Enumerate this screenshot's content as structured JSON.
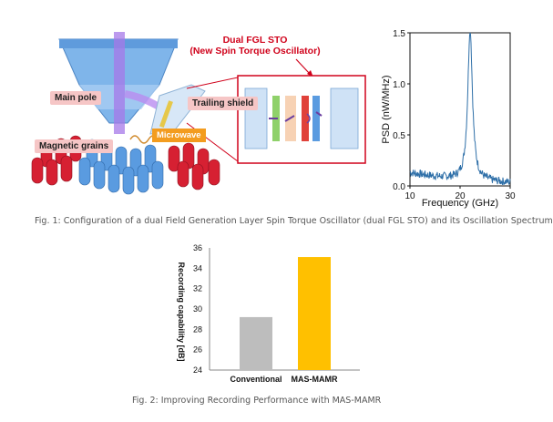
{
  "figure1": {
    "title_line1": "Dual FGL STO",
    "title_line2": "(New Spin Torque Oscillator)",
    "labels": {
      "main_pole": "Main pole",
      "trailing_shield": "Trailing shield",
      "microwave": "Microwave",
      "magnetic_grains": "Magnetic grains"
    },
    "colors": {
      "title": "#d0021b",
      "label_bg": "#f6c6c6",
      "microwave_bg": "#f39c1f",
      "grain_red": "#d62032",
      "grain_blue": "#5a9be0"
    },
    "caption": "Fig. 1: Configuration of a dual Field Generation Layer Spin Torque Oscillator (dual FGL STO) and its Oscillation Spectrum"
  },
  "chart_psd": {
    "type": "line",
    "xlabel": "Frequency (GHz)",
    "ylabel": "PSD (nW/MHz)",
    "xlim": [
      10,
      30
    ],
    "ylim": [
      0,
      1.5
    ],
    "xticks": [
      "10",
      "20",
      "30"
    ],
    "yticks": [
      "0.0",
      "0.5",
      "1.0",
      "1.5"
    ],
    "color": "#2e6fa8",
    "peak_frequency": 22,
    "peak_value": 1.5
  },
  "chart_data": {
    "type": "bar",
    "categories": [
      "Conventional",
      "MAS-MAMR"
    ],
    "values": [
      29.2,
      35.1
    ],
    "ylabel": "Recording capability [dB]",
    "ylim": [
      24,
      36
    ],
    "yticks": [
      "24",
      "26",
      "28",
      "30",
      "32",
      "34",
      "36"
    ],
    "colors": [
      "#bdbdbd",
      "#ffc000"
    ]
  },
  "figure2": {
    "caption": "Fig. 2: Improving Recording Performance with MAS-MAMR"
  }
}
